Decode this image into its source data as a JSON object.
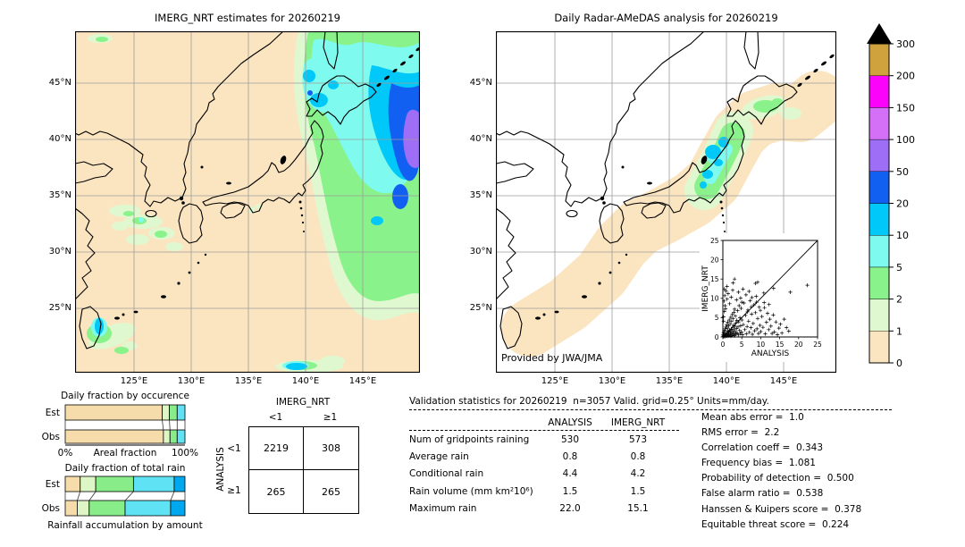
{
  "palette": {
    "c0": "#fbe5c0",
    "c1": "#e0f8cf",
    "c2": "#8af28a",
    "c3": "#7efaee",
    "c4": "#00c8f8",
    "c5": "#1160f2",
    "c6": "#9e6ef6",
    "c7": "#d470f8",
    "c8": "#fb02fb",
    "c9": "#d0a23e",
    "grid": "#9c9c9c",
    "coast": "#000000",
    "ocean_right": "#ffffff"
  },
  "left_map": {
    "title": "IMERG_NRT estimates for 20260219",
    "lat_ticks": [
      "45°N",
      "40°N",
      "35°N",
      "30°N",
      "25°N"
    ],
    "lon_ticks": [
      "125°E",
      "130°E",
      "135°E",
      "140°E",
      "145°E"
    ]
  },
  "right_map": {
    "title": "Daily Radar-AMeDAS analysis for 20260219",
    "lat_ticks": [
      "45°N",
      "40°N",
      "35°N",
      "30°N",
      "25°N"
    ],
    "lon_ticks": [
      "125°E",
      "130°E",
      "135°E",
      "140°E",
      "145°E"
    ],
    "provider": "Provided by JWA/JMA"
  },
  "colorbar": {
    "levels": [
      "0",
      "1",
      "2",
      "5",
      "10",
      "20",
      "50",
      "100",
      "150",
      "200",
      "300"
    ],
    "colors": [
      "c0",
      "c1",
      "c2",
      "c3",
      "c4",
      "c5",
      "c6",
      "c7",
      "c8",
      "c9"
    ]
  },
  "chart_data": [
    {
      "type": "bar",
      "name": "occurrence",
      "title": "Daily fraction by occurence",
      "categories": [
        "Est",
        "Obs"
      ],
      "series_labels": [
        "0-1",
        "1-2",
        "2-5",
        "5-10"
      ],
      "series": [
        {
          "name": "Est",
          "values": [
            81,
            6,
            6.5,
            6.5
          ]
        },
        {
          "name": "Obs",
          "values": [
            82,
            5.5,
            6,
            6.5
          ]
        }
      ],
      "colors": [
        "#f7dcab",
        "#def6c6",
        "#88ec88",
        "#5fe2f4"
      ],
      "xlabel_left": "0%",
      "xlabel_center": "Areal fraction",
      "xlabel_right": "100%",
      "xlim": [
        0,
        100
      ]
    },
    {
      "type": "bar",
      "name": "total_rain",
      "title": "Daily fraction of total rain",
      "categories": [
        "Est",
        "Obs"
      ],
      "series_labels": [
        "0-1",
        "1-2",
        "2-5",
        "5-10",
        "10-20"
      ],
      "series": [
        {
          "name": "Est",
          "values": [
            12.5,
            13,
            31.5,
            34,
            9
          ]
        },
        {
          "name": "Obs",
          "values": [
            10,
            10,
            30,
            38,
            12
          ]
        }
      ],
      "colors": [
        "#f7dcab",
        "#def6c6",
        "#88ec88",
        "#5fe2f4",
        "#00a9ef"
      ],
      "caption": "Rainfall accumulation by amount",
      "xlim": [
        0,
        100
      ]
    },
    {
      "type": "scatter",
      "name": "inset_scatter",
      "xlabel": "ANALYSIS",
      "ylabel": "IMERG_NRT",
      "xlim": [
        0,
        25
      ],
      "ylim": [
        0,
        25
      ],
      "ticks": [
        0,
        5,
        10,
        15,
        20,
        25
      ],
      "diagonal": true,
      "points": [
        [
          0.1,
          0.1
        ],
        [
          0.2,
          0.3
        ],
        [
          0.1,
          0.6
        ],
        [
          0.3,
          0.2
        ],
        [
          0.4,
          0.5
        ],
        [
          0.2,
          1.0
        ],
        [
          0.5,
          0.1
        ],
        [
          0.6,
          0.4
        ],
        [
          0.3,
          1.4
        ],
        [
          0.7,
          0.8
        ],
        [
          0.5,
          1.7
        ],
        [
          0.8,
          0.2
        ],
        [
          0.9,
          0.6
        ],
        [
          0.6,
          2.1
        ],
        [
          1.0,
          0.3
        ],
        [
          1.1,
          1.0
        ],
        [
          0.8,
          2.6
        ],
        [
          1.2,
          0.5
        ],
        [
          1.3,
          1.5
        ],
        [
          1.0,
          3.2
        ],
        [
          1.4,
          0.2
        ],
        [
          1.5,
          0.8
        ],
        [
          1.2,
          2.3
        ],
        [
          1.6,
          1.2
        ],
        [
          1.3,
          3.8
        ],
        [
          1.7,
          0.4
        ],
        [
          1.8,
          1.8
        ],
        [
          1.5,
          2.9
        ],
        [
          1.9,
          0.7
        ],
        [
          2.0,
          1.3
        ],
        [
          1.7,
          4.4
        ],
        [
          2.1,
          0.2
        ],
        [
          2.2,
          2.0
        ],
        [
          1.9,
          3.4
        ],
        [
          2.3,
          0.9
        ],
        [
          2.4,
          1.6
        ],
        [
          2.1,
          5.1
        ],
        [
          2.5,
          0.4
        ],
        [
          2.6,
          2.5
        ],
        [
          2.3,
          4.0
        ],
        [
          2.7,
          1.1
        ],
        [
          2.8,
          3.0
        ],
        [
          2.5,
          5.8
        ],
        [
          2.9,
          0.6
        ],
        [
          3.0,
          1.9
        ],
        [
          2.7,
          4.7
        ],
        [
          3.1,
          0.3
        ],
        [
          3.2,
          2.8
        ],
        [
          2.9,
          6.4
        ],
        [
          3.3,
          1.4
        ],
        [
          3.4,
          3.6
        ],
        [
          3.1,
          7.2
        ],
        [
          3.5,
          0.8
        ],
        [
          3.6,
          2.2
        ],
        [
          3.3,
          5.4
        ],
        [
          3.7,
          4.3
        ],
        [
          3.8,
          1.0
        ],
        [
          3.9,
          6.8
        ],
        [
          4.0,
          2.6
        ],
        [
          4.1,
          0.5
        ],
        [
          4.2,
          3.9
        ],
        [
          4.3,
          8.1
        ],
        [
          4.4,
          1.7
        ],
        [
          4.5,
          5.0
        ],
        [
          4.6,
          0.9
        ],
        [
          4.7,
          2.9
        ],
        [
          4.8,
          7.4
        ],
        [
          4.9,
          1.3
        ],
        [
          5.0,
          4.4
        ],
        [
          5.2,
          0.6
        ],
        [
          5.4,
          3.2
        ],
        [
          5.6,
          8.8
        ],
        [
          5.8,
          1.9
        ],
        [
          6.0,
          5.6
        ],
        [
          6.2,
          0.8
        ],
        [
          6.4,
          2.7
        ],
        [
          6.6,
          7.0
        ],
        [
          6.8,
          4.1
        ],
        [
          7.0,
          1.2
        ],
        [
          7.2,
          9.4
        ],
        [
          7.4,
          2.4
        ],
        [
          7.6,
          5.9
        ],
        [
          7.8,
          0.7
        ],
        [
          8.0,
          3.5
        ],
        [
          8.2,
          8.3
        ],
        [
          8.4,
          1.6
        ],
        [
          8.6,
          6.3
        ],
        [
          8.8,
          10.5
        ],
        [
          9.0,
          2.1
        ],
        [
          9.2,
          4.8
        ],
        [
          9.4,
          0.9
        ],
        [
          9.6,
          7.7
        ],
        [
          9.8,
          3.0
        ],
        [
          10.0,
          1.4
        ],
        [
          10.3,
          5.3
        ],
        [
          10.6,
          2.5
        ],
        [
          10.9,
          8.9
        ],
        [
          11.2,
          0.8
        ],
        [
          11.5,
          3.8
        ],
        [
          11.8,
          6.1
        ],
        [
          12.1,
          1.9
        ],
        [
          12.4,
          4.6
        ],
        [
          12.7,
          2.8
        ],
        [
          13.0,
          0.9
        ],
        [
          13.3,
          5.7
        ],
        [
          13.6,
          1.3
        ],
        [
          14.0,
          3.9
        ],
        [
          14.4,
          0.6
        ],
        [
          14.8,
          2.3
        ],
        [
          15.2,
          3.3
        ],
        [
          15.6,
          1.0
        ],
        [
          16.2,
          4.6
        ],
        [
          16.8,
          2.4
        ],
        [
          17.4,
          1.5
        ],
        [
          0.2,
          5.2
        ],
        [
          0.4,
          6.6
        ],
        [
          0.6,
          8.1
        ],
        [
          0.3,
          9.3
        ],
        [
          0.5,
          10.7
        ],
        [
          0.8,
          11.9
        ],
        [
          0.2,
          4.1
        ],
        [
          0.7,
          7.3
        ],
        [
          1.1,
          9.8
        ],
        [
          1.4,
          11.2
        ],
        [
          1.1,
          13.1
        ],
        [
          0.4,
          12.4
        ],
        [
          1.8,
          8.6
        ],
        [
          2.2,
          10.3
        ],
        [
          2.6,
          12.1
        ],
        [
          2.7,
          14.0
        ],
        [
          3.1,
          15.0
        ],
        [
          3.6,
          9.6
        ],
        [
          4.1,
          11.6
        ],
        [
          4.7,
          10.1
        ],
        [
          5.3,
          12.4
        ],
        [
          6.1,
          10.9
        ],
        [
          6.9,
          11.8
        ],
        [
          7.7,
          10.2
        ],
        [
          8.6,
          13.9
        ],
        [
          9.2,
          14.2
        ],
        [
          10.8,
          11.4
        ],
        [
          13.4,
          12.6
        ],
        [
          17.8,
          11.6
        ],
        [
          22.3,
          13.4
        ],
        [
          5.0,
          9.0
        ],
        [
          6.5,
          6.5
        ],
        [
          7.5,
          7.8
        ],
        [
          8.9,
          9.0
        ],
        [
          9.9,
          6.9
        ],
        [
          11.0,
          7.6
        ],
        [
          12.2,
          8.4
        ]
      ]
    }
  ],
  "contingency": {
    "col_title": "IMERG_NRT",
    "row_title": "ANALYSIS",
    "col_labels": [
      "<1",
      "≥1"
    ],
    "row_labels": [
      "<1",
      "≥1"
    ],
    "values": [
      [
        "2219",
        "308"
      ],
      [
        "265",
        "265"
      ]
    ]
  },
  "validation": {
    "title": "Validation statistics for 20260219  n=3057 Valid. grid=0.25° Units=mm/day.",
    "columns": [
      "ANALYSIS",
      "IMERG_NRT"
    ],
    "rows": [
      {
        "label": "Num of gridpoints raining",
        "analysis": "530",
        "imerg": "573"
      },
      {
        "label": "Average rain",
        "analysis": "0.8",
        "imerg": "0.8"
      },
      {
        "label": "Conditional rain",
        "analysis": "4.4",
        "imerg": "4.2"
      },
      {
        "label": "Rain volume (mm km²10⁶)",
        "analysis": "1.5",
        "imerg": "1.5"
      },
      {
        "label": "Maximum rain",
        "analysis": "22.0",
        "imerg": "15.1"
      }
    ],
    "metrics": [
      {
        "label": "Mean abs error",
        "value": "1.0"
      },
      {
        "label": "RMS error",
        "value": "2.2"
      },
      {
        "label": "Correlation coeff",
        "value": "0.343"
      },
      {
        "label": "Frequency bias",
        "value": "1.081"
      },
      {
        "label": "Probability of detection",
        "value": "0.500"
      },
      {
        "label": "False alarm ratio",
        "value": "0.538"
      },
      {
        "label": "Hanssen & Kuipers score",
        "value": "0.378"
      },
      {
        "label": "Equitable threat score",
        "value": "0.224"
      }
    ]
  }
}
